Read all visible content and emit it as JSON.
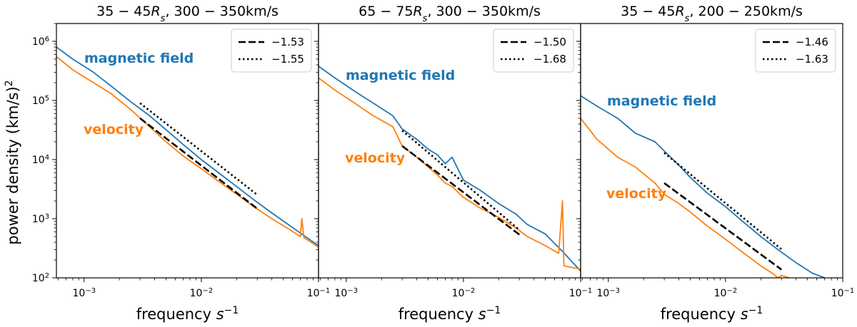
{
  "figure": {
    "ylabel": "power density (km/s)",
    "ylabel_sup": "2"
  },
  "chart_data": [
    {
      "type": "line",
      "title": "35 − 45R_s, 300 − 350km/s",
      "title_parts": {
        "a": "35 − 45",
        "r": "R",
        "s": "s",
        "b": ", 300 − 350km/s"
      },
      "xlabel": "frequency s^-1",
      "xlabel_parts": {
        "a": "frequency ",
        "s": "s",
        "e": "−1"
      },
      "ylabel": "power density (km/s)^2",
      "xscale": "log",
      "yscale": "log",
      "xlim": [
        0.00058,
        0.1
      ],
      "ylim": [
        100,
        2000000
      ],
      "x_tick_labels": [
        "10",
        "10",
        "10"
      ],
      "x_tick_exps": [
        "−3",
        "−2",
        "−1"
      ],
      "y_tick_labels": [
        "10",
        "10",
        "10",
        "10",
        "10"
      ],
      "y_tick_exps": [
        "2",
        "3",
        "4",
        "5",
        "6"
      ],
      "legend": {
        "location": "top-right",
        "entries": [
          "−1.53",
          "−1.55"
        ]
      },
      "annotations": {
        "magnetic": "magnetic field",
        "velocity": "velocity"
      },
      "series": [
        {
          "name": "magnetic field",
          "color": "#1f77b4",
          "x": [
            0.00058,
            0.0008,
            0.0012,
            0.0017,
            0.0025,
            0.0035,
            0.005,
            0.007,
            0.01,
            0.014,
            0.02,
            0.028,
            0.04,
            0.055,
            0.075,
            0.1
          ],
          "y": [
            800000,
            500000,
            300000,
            175000,
            95000,
            58000,
            32000,
            18000,
            10000,
            6000,
            3500,
            2100,
            1250,
            800,
            520,
            350
          ]
        },
        {
          "name": "velocity",
          "color": "#ff7f0e",
          "x": [
            0.00058,
            0.0008,
            0.0012,
            0.0017,
            0.0025,
            0.0035,
            0.005,
            0.007,
            0.01,
            0.014,
            0.02,
            0.028,
            0.04,
            0.055,
            0.07,
            0.072,
            0.075,
            0.1
          ],
          "y": [
            550000,
            330000,
            200000,
            130000,
            70000,
            38000,
            20000,
            11500,
            7000,
            4300,
            2600,
            1600,
            1000,
            680,
            500,
            1000,
            480,
            330
          ]
        },
        {
          "name": "−1.53",
          "style": "dashed",
          "x": [
            0.003,
            0.03
          ],
          "y": [
            50000,
            1480
          ]
        },
        {
          "name": "−1.55",
          "style": "dotted",
          "x": [
            0.003,
            0.03
          ],
          "y": [
            90000,
            2530
          ]
        }
      ]
    },
    {
      "type": "line",
      "title": "65 − 75R_s, 300 − 350km/s",
      "title_parts": {
        "a": "65 − 75",
        "r": "R",
        "s": "s",
        "b": ", 300 − 350km/s"
      },
      "xlabel": "frequency s^-1",
      "xlabel_parts": {
        "a": "frequency ",
        "s": "s",
        "e": "−1"
      },
      "xscale": "log",
      "yscale": "log",
      "xlim": [
        0.00058,
        0.1
      ],
      "ylim": [
        100,
        2000000
      ],
      "x_tick_labels": [
        "10",
        "10",
        "10"
      ],
      "x_tick_exps": [
        "−3",
        "−2",
        "−1"
      ],
      "legend": {
        "location": "top-right",
        "entries": [
          "−1.50",
          "−1.68"
        ]
      },
      "annotations": {
        "magnetic": "magnetic field",
        "velocity": "velocity"
      },
      "series": [
        {
          "name": "magnetic field",
          "color": "#1f77b4",
          "x": [
            0.00058,
            0.0008,
            0.0012,
            0.0017,
            0.0025,
            0.003,
            0.004,
            0.005,
            0.006,
            0.007,
            0.008,
            0.01,
            0.014,
            0.02,
            0.028,
            0.035,
            0.05,
            0.07,
            0.1
          ],
          "y": [
            380000,
            240000,
            140000,
            90000,
            55000,
            33000,
            22000,
            15000,
            12000,
            8500,
            11000,
            4500,
            3000,
            1800,
            1200,
            800,
            550,
            280,
            130
          ]
        },
        {
          "name": "velocity",
          "color": "#ff7f0e",
          "x": [
            0.00058,
            0.0008,
            0.0012,
            0.0017,
            0.0025,
            0.003,
            0.004,
            0.005,
            0.006,
            0.007,
            0.008,
            0.01,
            0.014,
            0.02,
            0.028,
            0.035,
            0.05,
            0.065,
            0.07,
            0.072,
            0.1
          ],
          "y": [
            240000,
            150000,
            88000,
            55000,
            36000,
            17000,
            11000,
            7500,
            5500,
            4000,
            3500,
            2300,
            1500,
            1050,
            700,
            500,
            350,
            260,
            2000,
            160,
            140
          ]
        },
        {
          "name": "−1.50",
          "style": "dashed",
          "x": [
            0.003,
            0.03
          ],
          "y": [
            17000,
            538
          ]
        },
        {
          "name": "−1.68",
          "style": "dotted",
          "x": [
            0.003,
            0.03
          ],
          "y": [
            31000,
            647
          ]
        }
      ]
    },
    {
      "type": "line",
      "title": "35 − 45R_s, 200 − 250km/s",
      "title_parts": {
        "a": "35 − 45",
        "r": "R",
        "s": "s",
        "b": ", 200 − 250km/s"
      },
      "xlabel": "frequency s^-1",
      "xlabel_parts": {
        "a": "frequency ",
        "s": "s",
        "e": "−1"
      },
      "xscale": "log",
      "yscale": "log",
      "xlim": [
        0.00058,
        0.1
      ],
      "ylim": [
        100,
        2000000
      ],
      "x_tick_labels": [
        "10",
        "10",
        "10"
      ],
      "x_tick_exps": [
        "−3",
        "−2",
        "−1"
      ],
      "legend": {
        "location": "top-right",
        "entries": [
          "−1.46",
          "−1.63"
        ]
      },
      "annotations": {
        "magnetic": "magnetic field",
        "velocity": "velocity"
      },
      "series": [
        {
          "name": "magnetic field",
          "color": "#1f77b4",
          "x": [
            0.00058,
            0.0008,
            0.0012,
            0.0017,
            0.0025,
            0.003,
            0.004,
            0.005,
            0.007,
            0.01,
            0.014,
            0.02,
            0.028,
            0.04,
            0.055,
            0.07
          ],
          "y": [
            120000,
            80000,
            50000,
            28000,
            20000,
            14000,
            8000,
            5000,
            2700,
            1600,
            900,
            500,
            300,
            180,
            120,
            100
          ]
        },
        {
          "name": "velocity",
          "color": "#ff7f0e",
          "x": [
            0.00058,
            0.0008,
            0.0012,
            0.0017,
            0.0025,
            0.003,
            0.004,
            0.005,
            0.007,
            0.01,
            0.014,
            0.02,
            0.025,
            0.028,
            0.03,
            0.035
          ],
          "y": [
            50000,
            22000,
            11000,
            7500,
            4000,
            2600,
            1800,
            1300,
            750,
            450,
            270,
            160,
            120,
            100,
            110,
            100
          ]
        },
        {
          "name": "−1.46",
          "style": "dashed",
          "x": [
            0.003,
            0.03
          ],
          "y": [
            4000,
            138
          ]
        },
        {
          "name": "−1.63",
          "style": "dotted",
          "x": [
            0.003,
            0.03
          ],
          "y": [
            13000,
            305
          ]
        }
      ]
    }
  ]
}
